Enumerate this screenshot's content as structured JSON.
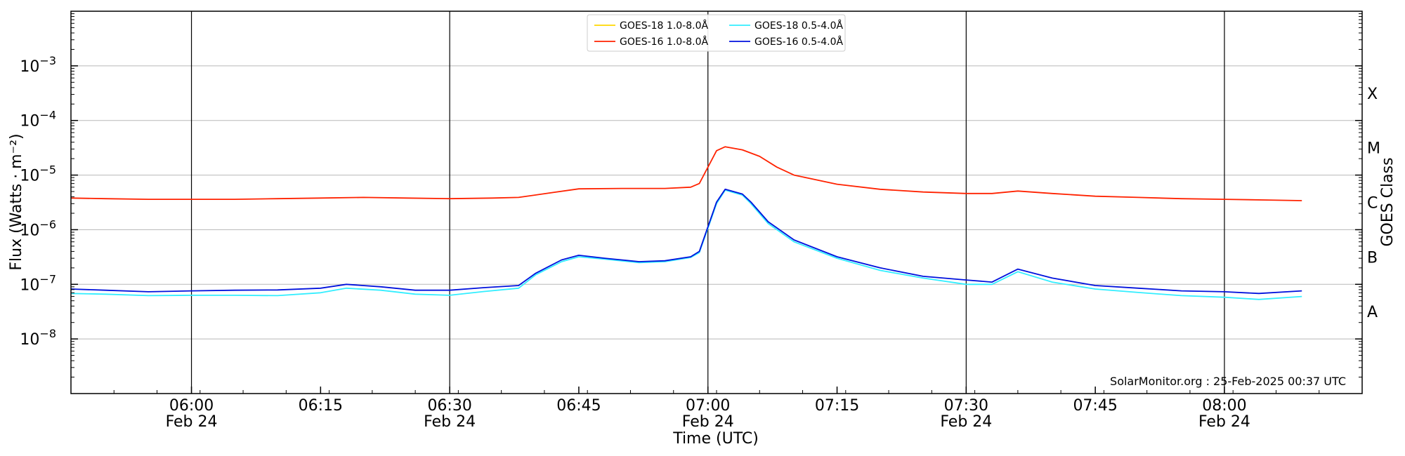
{
  "chart_data": {
    "type": "line",
    "y_scale": "log",
    "ylim": [
      1e-09,
      0.01
    ],
    "xlim": [
      "2025-02-24T05:46:00Z",
      "2025-02-24T08:16:00Z"
    ],
    "ylabel": "Flux (Watts · m⁻²)",
    "xlabel": "Time (UTC)",
    "right_axis_label": "GOES Class",
    "credit": "SolarMonitor.org : 25-Feb-2025 00:37 UTC",
    "legend_position": "top-center",
    "grid": {
      "horizontal": true,
      "vertical_at_half_hours": true
    },
    "y_ticks": [
      {
        "value": 1e-08,
        "base": "10",
        "exp": "−8"
      },
      {
        "value": 1e-07,
        "base": "10",
        "exp": "−7"
      },
      {
        "value": 1e-06,
        "base": "10",
        "exp": "−6"
      },
      {
        "value": 1e-05,
        "base": "10",
        "exp": "−5"
      },
      {
        "value": 0.0001,
        "base": "10",
        "exp": "−4"
      },
      {
        "value": 0.001,
        "base": "10",
        "exp": "−3"
      }
    ],
    "x_ticks": [
      {
        "time": "2025-02-24T06:00:00Z",
        "label": "06:00",
        "date": "Feb 24"
      },
      {
        "time": "2025-02-24T06:15:00Z",
        "label": "06:15",
        "date": ""
      },
      {
        "time": "2025-02-24T06:30:00Z",
        "label": "06:30",
        "date": "Feb 24"
      },
      {
        "time": "2025-02-24T06:45:00Z",
        "label": "06:45",
        "date": ""
      },
      {
        "time": "2025-02-24T07:00:00Z",
        "label": "07:00",
        "date": "Feb 24"
      },
      {
        "time": "2025-02-24T07:15:00Z",
        "label": "07:15",
        "date": ""
      },
      {
        "time": "2025-02-24T07:30:00Z",
        "label": "07:30",
        "date": "Feb 24"
      },
      {
        "time": "2025-02-24T07:45:00Z",
        "label": "07:45",
        "date": ""
      },
      {
        "time": "2025-02-24T08:00:00Z",
        "label": "08:00",
        "date": "Feb 24"
      }
    ],
    "class_labels": [
      {
        "label": "A",
        "value": 3.16e-08
      },
      {
        "label": "B",
        "value": 3.16e-07
      },
      {
        "label": "C",
        "value": 3.16e-06
      },
      {
        "label": "M",
        "value": 3.16e-05
      },
      {
        "label": "X",
        "value": 0.000316
      }
    ],
    "series": [
      {
        "name": "GOES-18 1.0-8.0Å",
        "color": "#ffd700",
        "x": [],
        "values": []
      },
      {
        "name": "GOES-16 1.0-8.0Å",
        "color": "#ff2200",
        "x": [
          "2025-02-24T05:46:00Z",
          "2025-02-24T05:50:00Z",
          "2025-02-24T05:55:00Z",
          "2025-02-24T06:00:00Z",
          "2025-02-24T06:05:00Z",
          "2025-02-24T06:10:00Z",
          "2025-02-24T06:15:00Z",
          "2025-02-24T06:20:00Z",
          "2025-02-24T06:25:00Z",
          "2025-02-24T06:30:00Z",
          "2025-02-24T06:35:00Z",
          "2025-02-24T06:38:00Z",
          "2025-02-24T06:42:00Z",
          "2025-02-24T06:45:00Z",
          "2025-02-24T06:50:00Z",
          "2025-02-24T06:55:00Z",
          "2025-02-24T06:58:00Z",
          "2025-02-24T06:59:00Z",
          "2025-02-24T07:01:00Z",
          "2025-02-24T07:02:00Z",
          "2025-02-24T07:04:00Z",
          "2025-02-24T07:06:00Z",
          "2025-02-24T07:08:00Z",
          "2025-02-24T07:10:00Z",
          "2025-02-24T07:15:00Z",
          "2025-02-24T07:20:00Z",
          "2025-02-24T07:25:00Z",
          "2025-02-24T07:30:00Z",
          "2025-02-24T07:33:00Z",
          "2025-02-24T07:36:00Z",
          "2025-02-24T07:40:00Z",
          "2025-02-24T07:45:00Z",
          "2025-02-24T07:50:00Z",
          "2025-02-24T07:55:00Z",
          "2025-02-24T08:00:00Z",
          "2025-02-24T08:05:00Z",
          "2025-02-24T08:09:00Z"
        ],
        "values": [
          3.8e-06,
          3.7e-06,
          3.6e-06,
          3.6e-06,
          3.6e-06,
          3.7e-06,
          3.8e-06,
          3.9e-06,
          3.8e-06,
          3.7e-06,
          3.8e-06,
          3.9e-06,
          4.8e-06,
          5.6e-06,
          5.7e-06,
          5.7e-06,
          6e-06,
          7e-06,
          2.8e-05,
          3.3e-05,
          2.9e-05,
          2.2e-05,
          1.4e-05,
          1e-05,
          6.8e-06,
          5.5e-06,
          4.9e-06,
          4.6e-06,
          4.6e-06,
          5.1e-06,
          4.6e-06,
          4.1e-06,
          3.9e-06,
          3.7e-06,
          3.6e-06,
          3.5e-06,
          3.4e-06
        ]
      },
      {
        "name": "GOES-18 0.5-4.0Å",
        "color": "#33eeff",
        "x": [
          "2025-02-24T05:46:00Z",
          "2025-02-24T05:50:00Z",
          "2025-02-24T05:55:00Z",
          "2025-02-24T06:00:00Z",
          "2025-02-24T06:05:00Z",
          "2025-02-24T06:10:00Z",
          "2025-02-24T06:15:00Z",
          "2025-02-24T06:18:00Z",
          "2025-02-24T06:22:00Z",
          "2025-02-24T06:26:00Z",
          "2025-02-24T06:30:00Z",
          "2025-02-24T06:34:00Z",
          "2025-02-24T06:38:00Z",
          "2025-02-24T06:40:00Z",
          "2025-02-24T06:43:00Z",
          "2025-02-24T06:45:00Z",
          "2025-02-24T06:48:00Z",
          "2025-02-24T06:52:00Z",
          "2025-02-24T06:55:00Z",
          "2025-02-24T06:58:00Z",
          "2025-02-24T06:59:00Z",
          "2025-02-24T07:01:00Z",
          "2025-02-24T07:02:00Z",
          "2025-02-24T07:04:00Z",
          "2025-02-24T07:05:00Z",
          "2025-02-24T07:07:00Z",
          "2025-02-24T07:10:00Z",
          "2025-02-24T07:15:00Z",
          "2025-02-24T07:20:00Z",
          "2025-02-24T07:25:00Z",
          "2025-02-24T07:30:00Z",
          "2025-02-24T07:33:00Z",
          "2025-02-24T07:36:00Z",
          "2025-02-24T07:40:00Z",
          "2025-02-24T07:45:00Z",
          "2025-02-24T07:50:00Z",
          "2025-02-24T07:55:00Z",
          "2025-02-24T08:00:00Z",
          "2025-02-24T08:04:00Z",
          "2025-02-24T08:09:00Z"
        ],
        "values": [
          6.8e-08,
          6.6e-08,
          6.2e-08,
          6.3e-08,
          6.3e-08,
          6.2e-08,
          7e-08,
          8.5e-08,
          7.8e-08,
          6.6e-08,
          6.3e-08,
          7.4e-08,
          8.5e-08,
          1.5e-07,
          2.6e-07,
          3.2e-07,
          2.9e-07,
          2.5e-07,
          2.6e-07,
          3.1e-07,
          3.8e-07,
          3e-06,
          5.3e-06,
          4.3e-06,
          3e-06,
          1.3e-06,
          6e-07,
          3e-07,
          1.8e-07,
          1.3e-07,
          1e-07,
          1e-07,
          1.7e-07,
          1.1e-07,
          8.2e-08,
          7.1e-08,
          6.2e-08,
          5.8e-08,
          5.3e-08,
          6e-08
        ]
      },
      {
        "name": "GOES-16 0.5-4.0Å",
        "color": "#0011dd",
        "x": [
          "2025-02-24T05:46:00Z",
          "2025-02-24T05:50:00Z",
          "2025-02-24T05:55:00Z",
          "2025-02-24T06:00:00Z",
          "2025-02-24T06:05:00Z",
          "2025-02-24T06:10:00Z",
          "2025-02-24T06:15:00Z",
          "2025-02-24T06:18:00Z",
          "2025-02-24T06:22:00Z",
          "2025-02-24T06:26:00Z",
          "2025-02-24T06:30:00Z",
          "2025-02-24T06:34:00Z",
          "2025-02-24T06:38:00Z",
          "2025-02-24T06:40:00Z",
          "2025-02-24T06:43:00Z",
          "2025-02-24T06:45:00Z",
          "2025-02-24T06:48:00Z",
          "2025-02-24T06:52:00Z",
          "2025-02-24T06:55:00Z",
          "2025-02-24T06:58:00Z",
          "2025-02-24T06:59:00Z",
          "2025-02-24T07:01:00Z",
          "2025-02-24T07:02:00Z",
          "2025-02-24T07:04:00Z",
          "2025-02-24T07:05:00Z",
          "2025-02-24T07:07:00Z",
          "2025-02-24T07:10:00Z",
          "2025-02-24T07:15:00Z",
          "2025-02-24T07:20:00Z",
          "2025-02-24T07:25:00Z",
          "2025-02-24T07:30:00Z",
          "2025-02-24T07:33:00Z",
          "2025-02-24T07:36:00Z",
          "2025-02-24T07:40:00Z",
          "2025-02-24T07:45:00Z",
          "2025-02-24T07:50:00Z",
          "2025-02-24T07:55:00Z",
          "2025-02-24T08:00:00Z",
          "2025-02-24T08:04:00Z",
          "2025-02-24T08:09:00Z"
        ],
        "values": [
          8.2e-08,
          7.8e-08,
          7.3e-08,
          7.6e-08,
          7.8e-08,
          7.9e-08,
          8.5e-08,
          1e-07,
          9e-08,
          7.8e-08,
          7.8e-08,
          8.7e-08,
          9.5e-08,
          1.6e-07,
          2.8e-07,
          3.4e-07,
          3e-07,
          2.6e-07,
          2.7e-07,
          3.2e-07,
          4e-07,
          3.2e-06,
          5.5e-06,
          4.5e-06,
          3.2e-06,
          1.4e-06,
          6.5e-07,
          3.2e-07,
          2e-07,
          1.4e-07,
          1.2e-07,
          1.1e-07,
          1.9e-07,
          1.3e-07,
          9.5e-08,
          8.5e-08,
          7.6e-08,
          7.3e-08,
          6.8e-08,
          7.6e-08
        ]
      }
    ]
  }
}
